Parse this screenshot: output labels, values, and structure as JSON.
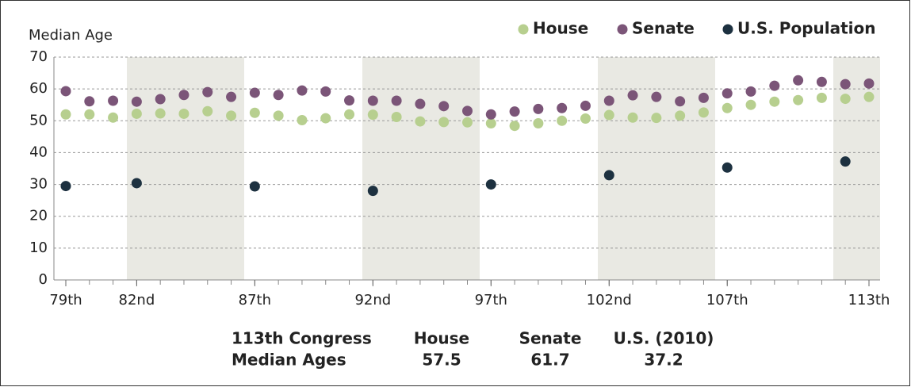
{
  "chart_data": {
    "type": "scatter",
    "y_label": "Median Age",
    "xlim": [
      79,
      113
    ],
    "ylim": [
      0,
      70
    ],
    "yticks": [
      0,
      10,
      20,
      30,
      40,
      50,
      60,
      70
    ],
    "xticks": [
      {
        "value": 79,
        "label": "79th"
      },
      {
        "value": 82,
        "label": "82nd"
      },
      {
        "value": 87,
        "label": "87th"
      },
      {
        "value": 92,
        "label": "92nd"
      },
      {
        "value": 97,
        "label": "97th"
      },
      {
        "value": 102,
        "label": "102nd"
      },
      {
        "value": 107,
        "label": "107th"
      },
      {
        "value": 113,
        "label": "113th"
      }
    ],
    "grid": true,
    "legend": "top-right",
    "series": [
      {
        "name": "House",
        "color": "#b7cf8f",
        "x": [
          79,
          80,
          81,
          82,
          83,
          84,
          85,
          86,
          87,
          88,
          89,
          90,
          91,
          92,
          93,
          94,
          95,
          96,
          97,
          98,
          99,
          100,
          101,
          102,
          103,
          104,
          105,
          106,
          107,
          108,
          109,
          110,
          111,
          112,
          113
        ],
        "values": [
          52,
          52,
          51,
          52.2,
          52.3,
          52.2,
          53,
          51.6,
          52.5,
          51.6,
          50.2,
          50.8,
          52,
          51.9,
          51.2,
          49.8,
          49.6,
          49.5,
          49.2,
          48.4,
          49.2,
          50,
          50.7,
          51.8,
          51,
          50.9,
          51.6,
          52.6,
          54,
          55,
          56,
          56.5,
          57.2,
          56.9,
          57.5
        ]
      },
      {
        "name": "Senate",
        "color": "#7b5578",
        "x": [
          79,
          80,
          81,
          82,
          83,
          84,
          85,
          86,
          87,
          88,
          89,
          90,
          91,
          92,
          93,
          94,
          95,
          96,
          97,
          98,
          99,
          100,
          101,
          102,
          103,
          104,
          105,
          106,
          107,
          108,
          109,
          110,
          111,
          112,
          113
        ],
        "values": [
          59.3,
          56.1,
          56.3,
          56,
          56.8,
          58.1,
          59,
          57.5,
          58.8,
          58.1,
          59.5,
          59.2,
          56.4,
          56.3,
          56.3,
          55.3,
          54.6,
          53.1,
          52,
          52.9,
          53.7,
          54,
          54.7,
          56.3,
          58,
          57.5,
          56.1,
          57.2,
          58.6,
          59.2,
          61,
          62.7,
          62.2,
          61.5,
          61.7
        ]
      },
      {
        "name": "U.S. Population",
        "color": "#1d3140",
        "x": [
          79,
          82,
          87,
          92,
          97,
          102,
          107,
          112
        ],
        "values": [
          29.5,
          30.4,
          29.4,
          28,
          30,
          32.9,
          35.3,
          37.2
        ]
      }
    ]
  },
  "summary": {
    "title_lines": [
      "113th Congress",
      "Median Ages"
    ],
    "columns": [
      {
        "header": "House",
        "value": "57.5"
      },
      {
        "header": "Senate",
        "value": "61.7"
      },
      {
        "header": "U.S. (2010)",
        "value": "37.2"
      }
    ]
  }
}
